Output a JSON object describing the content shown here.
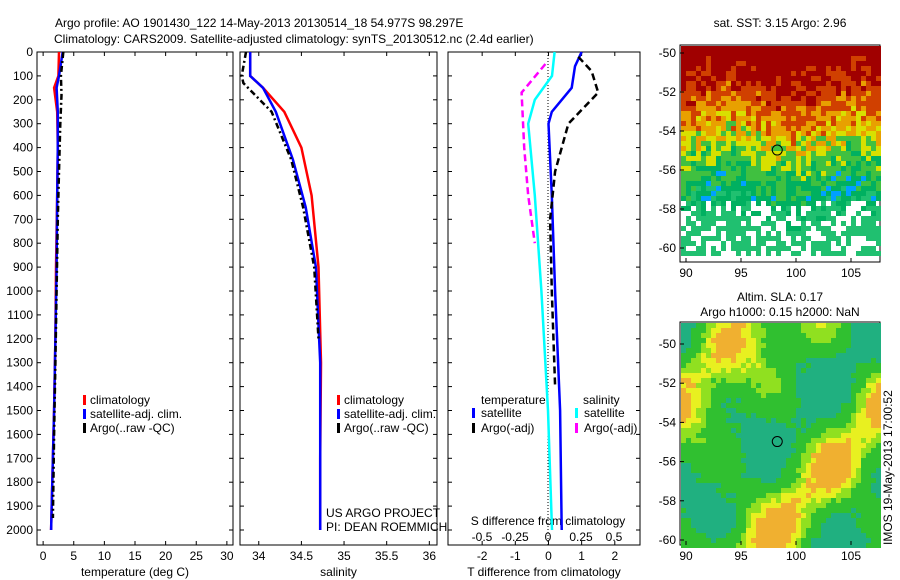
{
  "chart_data": {
    "type": "line",
    "title": [
      "Argo profile: AO 1901430_122 14-May-2013 20130514_18 54.977S 98.297E",
      "Climatology: CARS2009. Satellite-adjusted climatology: synTS_20130512.nc (2.4d earlier)"
    ],
    "ylim": [
      2060,
      0
    ],
    "yticks": [
      0,
      100,
      200,
      300,
      400,
      500,
      600,
      700,
      800,
      900,
      1000,
      1100,
      1200,
      1300,
      1400,
      1500,
      1600,
      1700,
      1800,
      1900,
      2000
    ],
    "panels": [
      {
        "xlabel": "temperature (deg C)",
        "xlim": [
          -1,
          31
        ],
        "xticks": [
          0,
          5,
          10,
          15,
          20,
          25,
          30
        ],
        "legend": [
          "climatology",
          "satellite-adj. clim.",
          "Argo(..raw -QC)"
        ],
        "series": [
          {
            "name": "climatology",
            "color": "#ff0000",
            "dash": "",
            "x": [
              2.6,
              2.5,
              1.8,
              2.3,
              2.4,
              2.3,
              2.1,
              2.0,
              1.8,
              1.5,
              1.3
            ],
            "depth": [
              0,
              100,
              150,
              250,
              400,
              600,
              900,
              1200,
              1500,
              1800,
              2000
            ]
          },
          {
            "name": "satellite-adj. clim.",
            "color": "#0000ff",
            "dash": "",
            "x": [
              3.2,
              2.6,
              2.2,
              2.4,
              2.4,
              2.3,
              2.2,
              2.0,
              1.8,
              1.5,
              1.3
            ],
            "depth": [
              0,
              100,
              150,
              250,
              400,
              600,
              900,
              1200,
              1500,
              1800,
              2000
            ]
          },
          {
            "name": "Argo(..raw -QC)",
            "color": "#000000",
            "dash": "6,3,2,3",
            "x": [
              3.3,
              2.9,
              3.0,
              2.8,
              2.6,
              2.4,
              2.2,
              2.0,
              1.8,
              1.6
            ],
            "depth": [
              0,
              100,
              180,
              300,
              500,
              700,
              1000,
              1300,
              1600,
              1950
            ]
          }
        ]
      },
      {
        "xlabel": "salinity",
        "xlim": [
          33.78,
          36.09
        ],
        "xticks": [
          34,
          34.5,
          35,
          35.5,
          36
        ],
        "legend": [
          "climatology",
          "satellite-adj. clim.",
          "Argo(..raw -QC)"
        ],
        "annotations": [
          "US ARGO PROJECT",
          "PI: DEAN ROEMMICH"
        ],
        "series": [
          {
            "name": "climatology",
            "color": "#ff0000",
            "dash": "",
            "x": [
              33.9,
              33.9,
              34.05,
              34.3,
              34.5,
              34.62,
              34.7,
              34.73,
              34.72,
              34.72
            ],
            "depth": [
              0,
              100,
              150,
              250,
              400,
              600,
              900,
              1300,
              1700,
              2000
            ]
          },
          {
            "name": "satellite-adj. clim.",
            "color": "#0000ff",
            "dash": "",
            "x": [
              33.9,
              33.9,
              34.05,
              34.2,
              34.4,
              34.55,
              34.67,
              34.72,
              34.72,
              34.72
            ],
            "depth": [
              0,
              100,
              150,
              250,
              450,
              650,
              900,
              1300,
              1700,
              2000
            ]
          },
          {
            "name": "Argo(..raw -QC)",
            "color": "#000000",
            "dash": "6,3,2,3",
            "x": [
              33.85,
              33.8,
              33.82,
              34.15,
              34.38,
              34.52,
              34.65,
              34.7
            ],
            "depth": [
              0,
              100,
              130,
              250,
              450,
              650,
              900,
              1200
            ]
          }
        ]
      },
      {
        "xlabel": "T difference from climatology",
        "xlim": [
          -3.03,
          2.76
        ],
        "xticks": [
          -2,
          -1,
          0,
          1,
          2
        ],
        "x2label": "S difference from climatology",
        "x2ticks": [
          -0.5,
          -0.25,
          0,
          0.25,
          0.5
        ],
        "legend_titles": [
          "temperature",
          "salinity"
        ],
        "legend": [
          "satellite",
          "Argo(-adj)",
          "satellite",
          "Argo(-adj)"
        ],
        "series": [
          {
            "name": "T satellite",
            "color": "#0000ff",
            "dash": "",
            "x": [
              1.0,
              0.8,
              0.7,
              0.1,
              0.0,
              0.1,
              0.2,
              0.35,
              0.4
            ],
            "depth": [
              0,
              60,
              150,
              250,
              300,
              600,
              1000,
              1500,
              2000
            ]
          },
          {
            "name": "T Argo(-adj)",
            "color": "#000000",
            "dash": "7,4",
            "x": [
              0.9,
              1.3,
              1.5,
              0.6,
              0.2,
              0.05,
              0.1,
              0.2
            ],
            "depth": [
              20,
              80,
              170,
              300,
              500,
              700,
              1000,
              1400
            ]
          },
          {
            "name": "S satellite",
            "color": "#00ffff",
            "dash": "",
            "sunits": true,
            "x": [
              0.05,
              0.03,
              -0.1,
              -0.15,
              -0.1,
              -0.05,
              0.0,
              0.03
            ],
            "depth": [
              0,
              100,
              200,
              300,
              600,
              1000,
              1500,
              2000
            ]
          },
          {
            "name": "S Argo(-adj)",
            "color": "#ff00ff",
            "dash": "7,4",
            "sunits": true,
            "x": [
              -0.02,
              -0.2,
              -0.18,
              -0.15,
              -0.1
            ],
            "depth": [
              50,
              170,
              400,
              600,
              800
            ]
          }
        ]
      }
    ],
    "maps": [
      {
        "title": "sat. SST: 3.15 Argo: 2.96",
        "xticks": [
          90,
          95,
          100,
          105
        ],
        "yticks": [
          -50,
          -52,
          -54,
          -56,
          -58,
          -60
        ],
        "marker": [
          98.297,
          -54.977
        ]
      },
      {
        "title": "Altim. SLA: 0.17",
        "subtitle": "Argo h1000: 0.15 h2000: NaN",
        "xticks": [
          90,
          95,
          100,
          105
        ],
        "yticks": [
          -50,
          -52,
          -54,
          -56,
          -58,
          -60
        ],
        "marker": [
          98.297,
          -54.977
        ]
      }
    ],
    "side_label": "IMOS 19-May-2013 17:00:52"
  }
}
